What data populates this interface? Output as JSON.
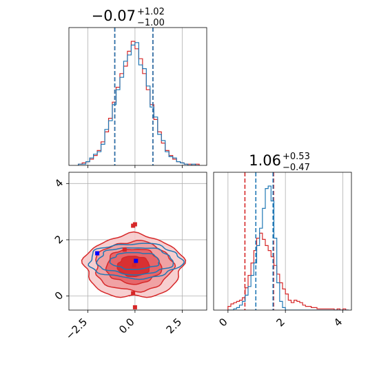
{
  "figure": {
    "title_p0": {
      "value": "−0.07",
      "plus": "+1.02",
      "minus": "−1.00"
    },
    "title_p1": {
      "value": "1.06",
      "plus": "+0.53",
      "minus": "−0.47"
    }
  },
  "chart_data": [
    {
      "type": "histogram",
      "panel": "top-left marginal (parameter 0)",
      "xlim": [
        -3.5,
        3.8
      ],
      "grid": true,
      "series": [
        {
          "color": "#d62728",
          "quantiles": [
            -1.07,
            0.95
          ],
          "bin_edges": [
            -3.0,
            -2.8,
            -2.6,
            -2.4,
            -2.2,
            -2.0,
            -1.8,
            -1.6,
            -1.4,
            -1.2,
            -1.0,
            -0.8,
            -0.6,
            -0.4,
            -0.2,
            0.0,
            0.2,
            0.4,
            0.6,
            0.8,
            1.0,
            1.2,
            1.4,
            1.6,
            1.8,
            2.0,
            2.2,
            2.4,
            2.6,
            2.8,
            3.0,
            3.2,
            3.4
          ],
          "counts": [
            1,
            2,
            3,
            5,
            8,
            12,
            19,
            27,
            38,
            51,
            63,
            74,
            80,
            92,
            100,
            94,
            86,
            74,
            61,
            49,
            37,
            27,
            18,
            12,
            8,
            5,
            3,
            2,
            1,
            1,
            0,
            1
          ]
        },
        {
          "color": "#1f77b4",
          "quantiles": [
            -1.07,
            0.95
          ],
          "bin_edges": [
            -3.0,
            -2.8,
            -2.6,
            -2.4,
            -2.2,
            -2.0,
            -1.8,
            -1.6,
            -1.4,
            -1.2,
            -1.0,
            -0.8,
            -0.6,
            -0.4,
            -0.2,
            0.0,
            0.2,
            0.4,
            0.6,
            0.8,
            1.0,
            1.2,
            1.4,
            1.6,
            1.8,
            2.0,
            2.2,
            2.4,
            2.6,
            2.8,
            3.0,
            3.2,
            3.4
          ],
          "counts": [
            1,
            1,
            3,
            6,
            9,
            11,
            17,
            29,
            36,
            49,
            61,
            71,
            84,
            89,
            97,
            99,
            81,
            78,
            64,
            47,
            39,
            25,
            20,
            11,
            7,
            6,
            3,
            2,
            1,
            0,
            1,
            0
          ]
        }
      ]
    },
    {
      "type": "contour",
      "panel": "bottom-left 2D (parameter 0 vs parameter 1)",
      "xlim": [
        -3.5,
        3.8
      ],
      "ylim": [
        -0.5,
        4.4
      ],
      "x_ticks": [
        -2.5,
        0.0,
        2.5
      ],
      "x_tick_labels": [
        "−2.5",
        "0.0",
        "2.5"
      ],
      "y_ticks": [
        0,
        2,
        4
      ],
      "y_tick_labels": [
        "0",
        "2",
        "4"
      ],
      "grid": true,
      "series": [
        {
          "color": "#d62728",
          "center": [
            -0.07,
            1.06
          ],
          "levels": [
            [
              0.85,
              0.36
            ],
            [
              1.45,
              0.62
            ],
            [
              2.05,
              0.88
            ],
            [
              2.6,
              1.12
            ]
          ],
          "scatter_points": [
            [
              -0.1,
              2.5
            ],
            [
              0.0,
              2.55
            ],
            [
              -0.55,
              1.65
            ],
            [
              -0.1,
              0.1
            ],
            [
              0.0,
              -0.4
            ],
            [
              -0.05,
              1.1
            ]
          ]
        },
        {
          "color": "#1f77b4",
          "center": [
            0.0,
            1.25
          ],
          "levels": [
            [
              1.3,
              0.3
            ],
            [
              2.0,
              0.48
            ],
            [
              2.45,
              0.62
            ]
          ],
          "scatter_points": [
            [
              -2.0,
              1.52
            ],
            [
              0.05,
              1.25
            ]
          ]
        }
      ]
    },
    {
      "type": "histogram",
      "panel": "bottom-right marginal (parameter 1)",
      "xlim": [
        -0.5,
        4.3
      ],
      "x_ticks": [
        0,
        2,
        4
      ],
      "x_tick_labels": [
        "0",
        "2",
        "4"
      ],
      "grid": true,
      "series": [
        {
          "color": "#d62728",
          "quantiles": [
            0.59,
            1.59
          ],
          "bin_edges": [
            0.0,
            0.1,
            0.2,
            0.3,
            0.4,
            0.5,
            0.6,
            0.7,
            0.8,
            0.9,
            1.0,
            1.1,
            1.2,
            1.3,
            1.4,
            1.5,
            1.6,
            1.7,
            1.8,
            1.9,
            2.0,
            2.1,
            2.2,
            2.3,
            2.4,
            2.5,
            2.6,
            2.7,
            2.8,
            2.9,
            3.0,
            3.1,
            3.2,
            3.3,
            3.4,
            3.5,
            3.6,
            3.7,
            3.8,
            3.9,
            4.0,
            4.1,
            4.2
          ],
          "counts": [
            3,
            5,
            6,
            7,
            8,
            10,
            18,
            28,
            38,
            48,
            58,
            62,
            57,
            52,
            48,
            43,
            36,
            29,
            22,
            17,
            13,
            8,
            6,
            8,
            7,
            6,
            4,
            3,
            3,
            2,
            2,
            1,
            1,
            1,
            1,
            1,
            1,
            0,
            1,
            0,
            1,
            0
          ]
        },
        {
          "color": "#1f77b4",
          "quantiles": [
            0.97,
            1.57
          ],
          "bin_edges": [
            0.0,
            0.1,
            0.2,
            0.3,
            0.4,
            0.5,
            0.6,
            0.7,
            0.8,
            0.9,
            1.0,
            1.1,
            1.2,
            1.3,
            1.4,
            1.5,
            1.6,
            1.7,
            1.8,
            1.9,
            2.0,
            2.1,
            2.2,
            2.3,
            2.4,
            2.5,
            2.6,
            2.7,
            2.8,
            2.9,
            3.0,
            3.1,
            3.2,
            3.3,
            3.4,
            3.5,
            3.6,
            3.7,
            3.8,
            3.9,
            4.0,
            4.1,
            4.2
          ],
          "counts": [
            0,
            0,
            1,
            2,
            4,
            7,
            12,
            19,
            28,
            38,
            52,
            66,
            82,
            98,
            100,
            88,
            58,
            22,
            7,
            2,
            0,
            0,
            0,
            0,
            0,
            0,
            0,
            0,
            0,
            0,
            0,
            0,
            0,
            0,
            0,
            0,
            0,
            0,
            0,
            0,
            0,
            0
          ]
        }
      ]
    }
  ]
}
